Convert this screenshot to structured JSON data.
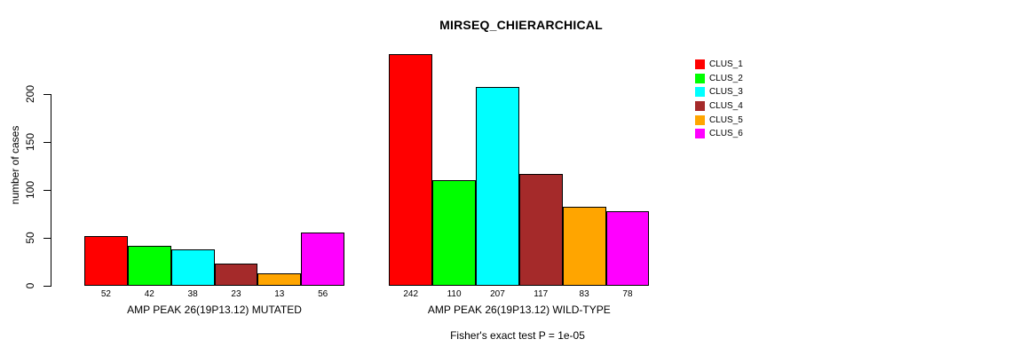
{
  "chart_data": {
    "type": "bar",
    "title": "MIRSEQ_CHIERARCHICAL",
    "ylabel": "number of cases",
    "xlabel": "",
    "ylim": [
      0,
      200
    ],
    "yticks": [
      0,
      50,
      100,
      150,
      200
    ],
    "grid": false,
    "legend_position": "top-right",
    "categories": [
      "AMP PEAK 26(19P13.12) MUTATED",
      "AMP PEAK 26(19P13.12) WILD-TYPE"
    ],
    "series": [
      {
        "name": "CLUS_1",
        "color": "#ff0000",
        "values": [
          52,
          242
        ]
      },
      {
        "name": "CLUS_2",
        "color": "#00ff00",
        "values": [
          42,
          110
        ]
      },
      {
        "name": "CLUS_3",
        "color": "#00ffff",
        "values": [
          38,
          207
        ]
      },
      {
        "name": "CLUS_4",
        "color": "#a52a2a",
        "values": [
          23,
          117
        ]
      },
      {
        "name": "CLUS_5",
        "color": "#ffa500",
        "values": [
          13,
          83
        ]
      },
      {
        "name": "CLUS_6",
        "color": "#ff00ff",
        "values": [
          56,
          78
        ]
      }
    ],
    "bar_value_labels_shown": true,
    "annotation": "Fisher's exact test P = 1e-05",
    "text_color": "#000000",
    "background_color": "#ffffff",
    "bar_border_color": "#000000"
  }
}
